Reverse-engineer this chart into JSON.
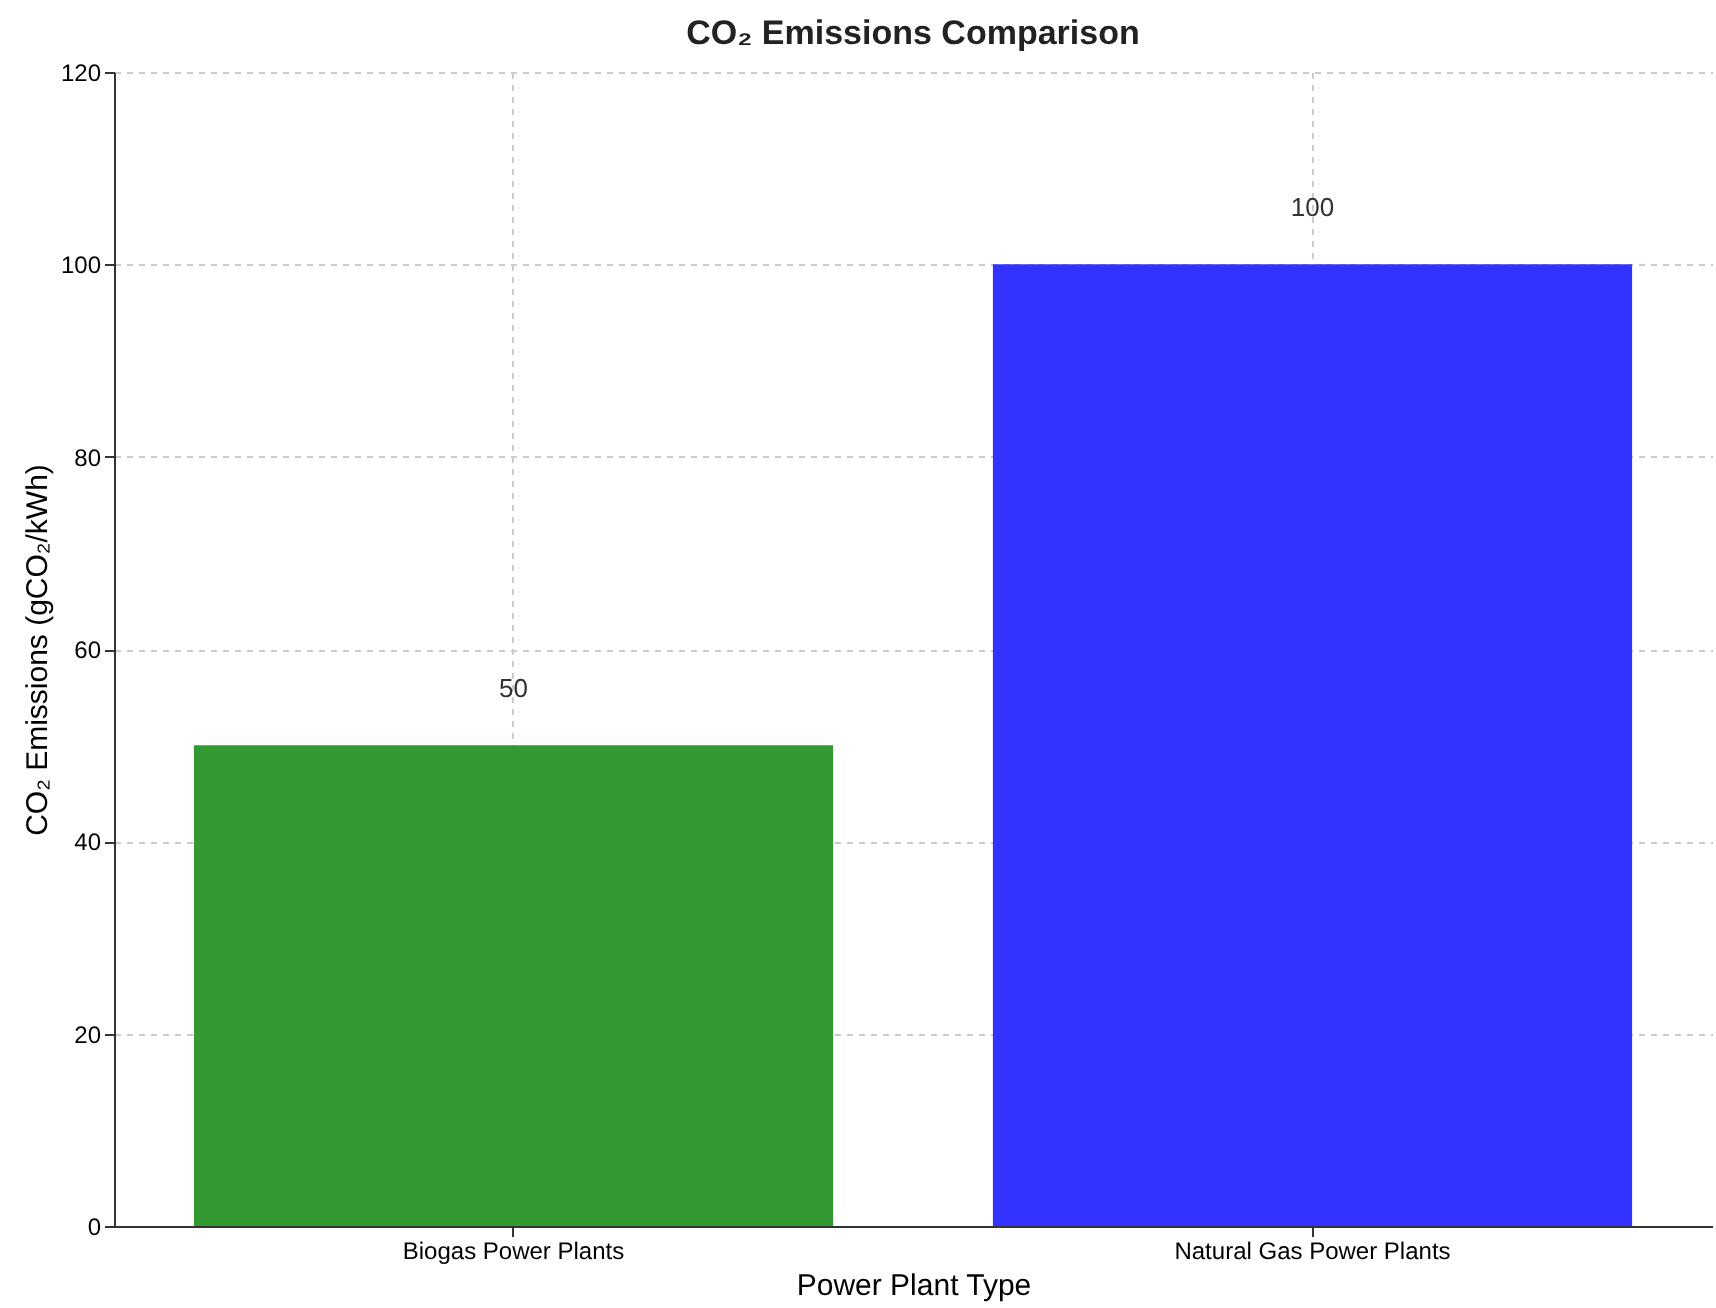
{
  "chart_data": {
    "type": "bar",
    "title": "CO₂ Emissions Comparison",
    "xlabel": "Power Plant Type",
    "ylabel": "CO₂ Emissions (gCO₂/kWh)",
    "categories": [
      "Biogas Power Plants",
      "Natural Gas Power Plants"
    ],
    "values": [
      50,
      100
    ],
    "colors": [
      "#339933",
      "#3333ff"
    ],
    "ylim": [
      0,
      120
    ],
    "yticks": [
      0,
      20,
      40,
      60,
      80,
      100,
      120
    ],
    "grid": true,
    "data_labels": true
  }
}
